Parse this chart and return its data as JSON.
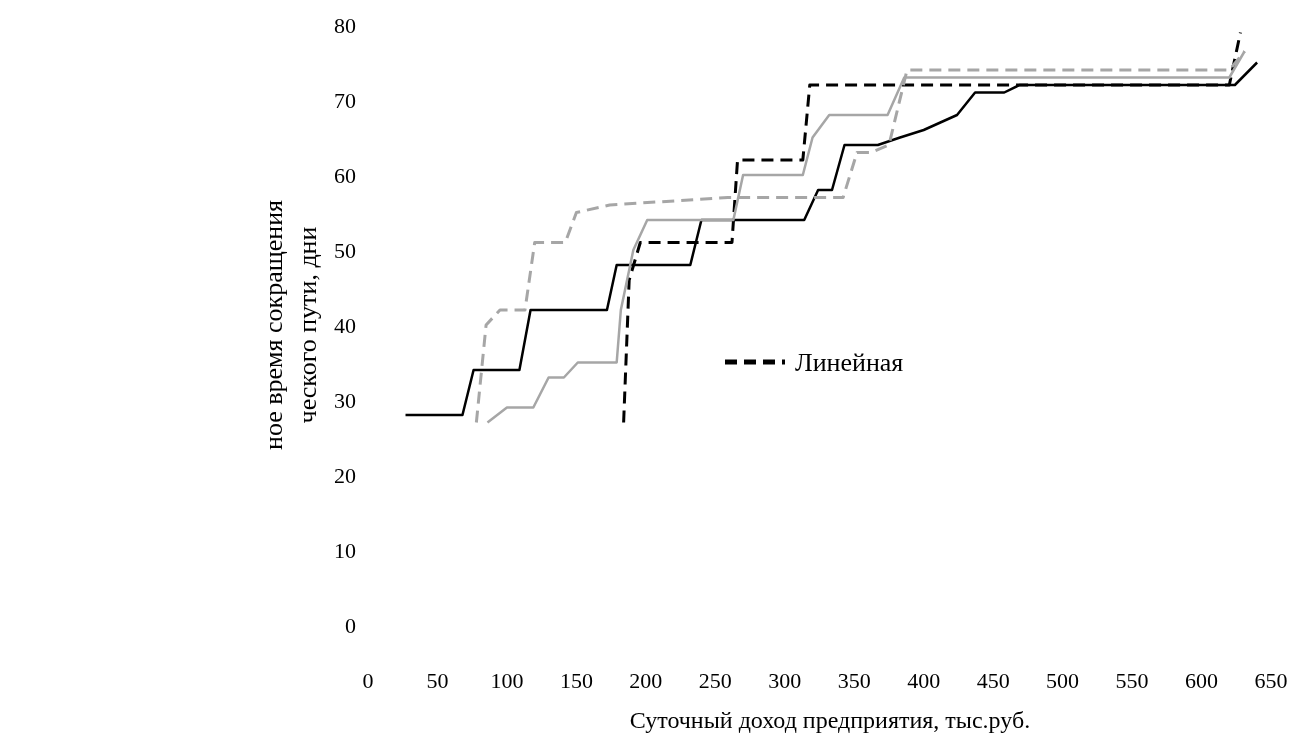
{
  "chart_data": {
    "type": "line",
    "xlabel": "Суточный доход предприятия, тыс.руб.",
    "ylabel": "ное время сокращения\nческого пути, дни",
    "xlim": [
      0,
      650
    ],
    "xticks": [
      0,
      50,
      100,
      150,
      200,
      250,
      300,
      350,
      400,
      450,
      500,
      550,
      600,
      650
    ],
    "ylim": [
      0,
      80
    ],
    "yticks": [
      0,
      10,
      20,
      30,
      40,
      50,
      60,
      70,
      80
    ],
    "grid": false,
    "legend": "right",
    "series": [
      {
        "name": "Линейная",
        "color": "#000000",
        "line_style": "dashed",
        "x": [
          184,
          188,
          196,
          250,
          262,
          266,
          313,
          318,
          620,
          628
        ],
        "values": [
          27,
          46,
          51,
          51,
          51,
          62,
          62,
          72,
          72,
          79
        ]
      },
      {
        "color": "#000000",
        "line_style": "solid",
        "x": [
          27,
          68,
          76,
          109,
          117,
          172,
          179,
          232,
          240,
          314,
          324,
          334,
          343,
          367,
          383,
          400,
          412,
          424,
          437,
          458,
          469,
          624,
          640
        ],
        "values": [
          28,
          28,
          34,
          34,
          42,
          42,
          48,
          48,
          54,
          54,
          58,
          58,
          64,
          64,
          65,
          66,
          67,
          68,
          71,
          71,
          72,
          72,
          75
        ]
      },
      {
        "color": "#a6a6a6",
        "line_style": "dashed",
        "x": [
          78,
          85,
          95,
          113,
          120,
          127,
          142,
          150,
          174,
          259,
          342,
          352,
          362,
          375,
          388,
          620,
          631
        ],
        "values": [
          27,
          40,
          42,
          42,
          51,
          51,
          51,
          55,
          56,
          57,
          57,
          63,
          63,
          64,
          74,
          74,
          76.5
        ]
      },
      {
        "color": "#a6a6a6",
        "line_style": "solid",
        "x": [
          86,
          100,
          119,
          130,
          141,
          151,
          179,
          182,
          191,
          201,
          225,
          234,
          263,
          270,
          313,
          320,
          332,
          357,
          374,
          386,
          620,
          631
        ],
        "values": [
          27,
          29,
          29,
          33,
          33,
          35,
          35,
          42,
          50,
          54,
          54,
          54,
          54,
          60,
          60,
          65,
          68,
          68,
          68,
          73,
          73,
          76.5
        ]
      }
    ]
  }
}
